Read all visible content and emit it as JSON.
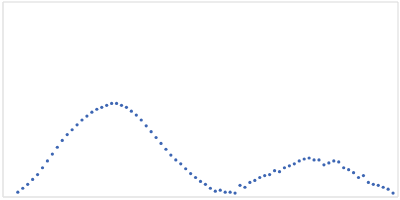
{
  "chart_data": {
    "type": "scatter",
    "color": "#3d66b3",
    "marker": "circle",
    "grid": true,
    "tick_labels": false,
    "xlim": [
      0,
      400
    ],
    "xticks": [
      115
    ],
    "ylim": [
      0,
      2
    ],
    "yticks": [
      1
    ],
    "x": [
      15,
      20,
      25,
      30,
      35,
      40,
      45,
      50,
      55,
      60,
      65,
      70,
      75,
      80,
      85,
      90,
      95,
      100,
      105,
      110,
      115,
      120,
      125,
      130,
      135,
      140,
      145,
      150,
      155,
      160,
      165,
      170,
      175,
      180,
      185,
      190,
      195,
      200,
      205,
      210,
      215,
      220,
      225,
      230,
      235,
      240,
      245,
      250,
      255,
      260,
      265,
      270,
      275,
      280,
      285,
      290,
      295,
      300,
      305,
      310,
      315,
      320,
      325,
      330,
      335,
      340,
      345,
      350,
      355,
      360,
      365,
      370,
      375,
      380,
      385,
      390,
      395
    ],
    "values": [
      0.05,
      0.09,
      0.13,
      0.18,
      0.23,
      0.3,
      0.37,
      0.44,
      0.51,
      0.58,
      0.64,
      0.69,
      0.74,
      0.79,
      0.83,
      0.87,
      0.9,
      0.92,
      0.94,
      0.96,
      0.96,
      0.94,
      0.92,
      0.88,
      0.84,
      0.79,
      0.73,
      0.67,
      0.61,
      0.55,
      0.49,
      0.43,
      0.38,
      0.34,
      0.29,
      0.24,
      0.2,
      0.16,
      0.13,
      0.09,
      0.06,
      0.07,
      0.05,
      0.05,
      0.04,
      0.12,
      0.1,
      0.15,
      0.17,
      0.2,
      0.22,
      0.23,
      0.27,
      0.26,
      0.3,
      0.32,
      0.34,
      0.37,
      0.39,
      0.4,
      0.38,
      0.38,
      0.33,
      0.35,
      0.37,
      0.36,
      0.3,
      0.28,
      0.25,
      0.2,
      0.22,
      0.15,
      0.13,
      0.12,
      0.1,
      0.08,
      0.04
    ]
  }
}
